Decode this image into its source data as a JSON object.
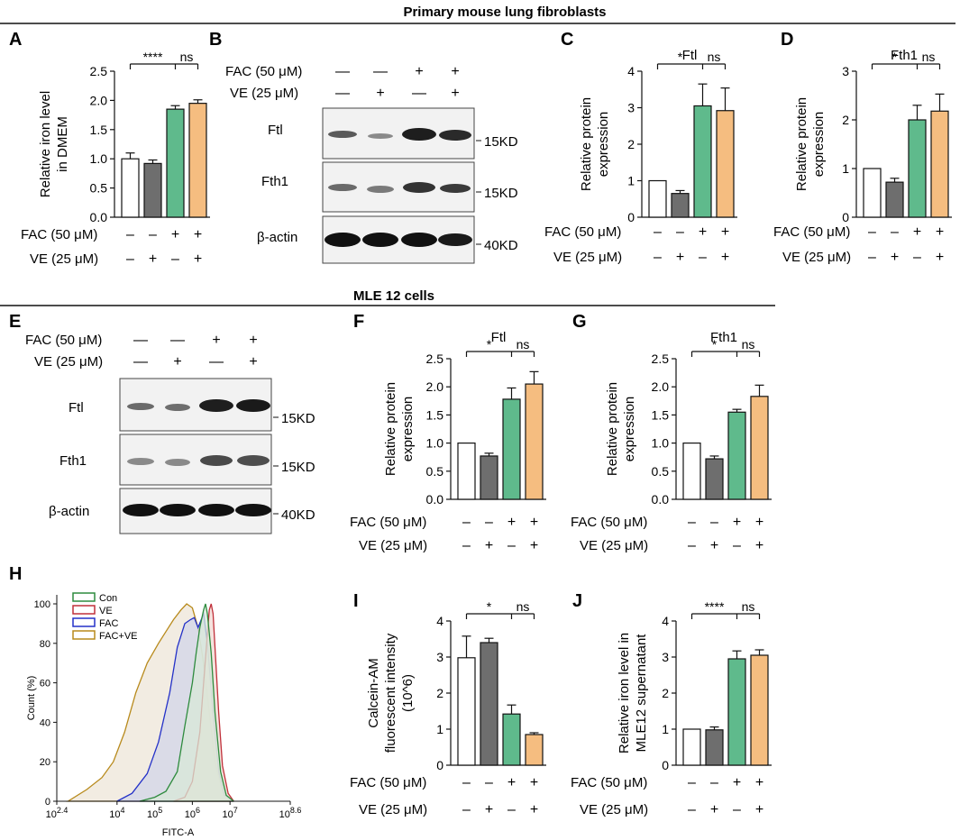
{
  "header_top": "Primary mouse lung fibroblasts",
  "header_mid": "MLE 12 cells",
  "panels": {
    "A": "A",
    "B": "B",
    "C": "C",
    "D": "D",
    "E": "E",
    "F": "F",
    "G": "G",
    "H": "H",
    "I": "I",
    "J": "J"
  },
  "treatment_labels": {
    "fac_bar": "FAC (50 μM)",
    "ve_bar": "VE (25 μM)",
    "fac_blot": "FAC (50 μM)",
    "ve_blot": "VE (25 μM)"
  },
  "fac_signs": [
    "–",
    "–",
    "+",
    "+"
  ],
  "ve_signs": [
    "–",
    "+",
    "–",
    "+"
  ],
  "blot_fac_signs": [
    "—",
    "—",
    "+",
    "+"
  ],
  "blot_ve_signs": [
    "—",
    "+",
    "—",
    "+"
  ],
  "bar_colors": [
    "#ffffff",
    "#6e6e6e",
    "#5fba8c",
    "#f5bd80"
  ],
  "blot_B": {
    "rows": [
      "Ftl",
      "Fth1",
      "β-actin"
    ],
    "sizes": [
      "15KD",
      "15KD",
      "40KD"
    ]
  },
  "blot_E": {
    "rows": [
      "Ftl",
      "Fth1",
      "β-actin"
    ],
    "sizes": [
      "15KD",
      "15KD",
      "40KD"
    ]
  },
  "chart_data": [
    {
      "panel": "A",
      "type": "bar",
      "title": "",
      "ylabel": "Relative iron level in DMEM",
      "ylabel_lines": [
        "Relative iron level",
        "in DMEM"
      ],
      "ylim": [
        0,
        2.5
      ],
      "yticks": [
        "0.0",
        "0.5",
        "1.0",
        "1.5",
        "2.0",
        "2.5"
      ],
      "values": [
        1.0,
        0.92,
        1.85,
        1.95
      ],
      "errors": [
        0.1,
        0.06,
        0.06,
        0.06
      ],
      "sig": [
        "****",
        "ns"
      ]
    },
    {
      "panel": "C",
      "type": "bar",
      "title": "Ftl",
      "ylabel": "Relative protein expression",
      "ylabel_lines": [
        "Relative  protein",
        "expression"
      ],
      "ylim": [
        0,
        4
      ],
      "yticks": [
        "0",
        "1",
        "2",
        "3",
        "4"
      ],
      "values": [
        1.0,
        0.65,
        3.05,
        2.92
      ],
      "errors": [
        0,
        0.08,
        0.6,
        0.62
      ],
      "sig": [
        "*",
        "ns"
      ]
    },
    {
      "panel": "D",
      "type": "bar",
      "title": "Fth1",
      "ylabel": "Relative protein expression",
      "ylabel_lines": [
        "Relative  protein",
        "expression"
      ],
      "ylim": [
        0,
        3
      ],
      "yticks": [
        "0",
        "1",
        "2",
        "3"
      ],
      "values": [
        1.0,
        0.72,
        2.0,
        2.18
      ],
      "errors": [
        0,
        0.08,
        0.3,
        0.35
      ],
      "sig": [
        "*",
        "ns"
      ]
    },
    {
      "panel": "F",
      "type": "bar",
      "title": "Ftl",
      "ylabel": "Relative protein expression",
      "ylabel_lines": [
        "Relative protein",
        "expression"
      ],
      "ylim": [
        0,
        2.5
      ],
      "yticks": [
        "0.0",
        "0.5",
        "1.0",
        "1.5",
        "2.0",
        "2.5"
      ],
      "values": [
        1.0,
        0.77,
        1.78,
        2.05
      ],
      "errors": [
        0,
        0.05,
        0.2,
        0.22
      ],
      "sig": [
        "*",
        "ns"
      ]
    },
    {
      "panel": "G",
      "type": "bar",
      "title": "Fth1",
      "ylabel": "Relative protein expression",
      "ylabel_lines": [
        "Relative protein",
        "expression"
      ],
      "ylim": [
        0,
        2.5
      ],
      "yticks": [
        "0.0",
        "0.5",
        "1.0",
        "1.5",
        "2.0",
        "2.5"
      ],
      "values": [
        1.0,
        0.72,
        1.55,
        1.83
      ],
      "errors": [
        0,
        0.05,
        0.05,
        0.2
      ],
      "sig": [
        "*",
        "ns"
      ]
    },
    {
      "panel": "I",
      "type": "bar",
      "title": "",
      "ylabel": "Calcein-AM fluorescent intensity (10^6)",
      "ylabel_lines": [
        "Calcein-AM",
        "fluorescent intensity",
        "(10^6)"
      ],
      "ylim": [
        0,
        4
      ],
      "yticks": [
        "0",
        "1",
        "2",
        "3",
        "4"
      ],
      "values": [
        2.98,
        3.4,
        1.42,
        0.85
      ],
      "errors": [
        0.6,
        0.12,
        0.25,
        0.05
      ],
      "sig": [
        "*",
        "ns"
      ]
    },
    {
      "panel": "J",
      "type": "bar",
      "title": "",
      "ylabel": "Relative iron level in MLE12 supernatant",
      "ylabel_lines": [
        "Relative iron level in",
        "MLE12 supernatant"
      ],
      "ylim": [
        0,
        4
      ],
      "yticks": [
        "0",
        "1",
        "2",
        "3",
        "4"
      ],
      "values": [
        1.0,
        0.98,
        2.95,
        3.05
      ],
      "errors": [
        0,
        0.08,
        0.22,
        0.15
      ],
      "sig": [
        "****",
        "ns"
      ]
    },
    {
      "panel": "H",
      "type": "line",
      "title": "",
      "xlabel": "FITC-A",
      "ylabel": "Count (%)",
      "xlim_log10": [
        2.4,
        8.6
      ],
      "ylim": [
        0,
        100
      ],
      "xticks": [
        {
          "base": "10",
          "exp": "2.4"
        },
        {
          "base": "10",
          "exp": "4"
        },
        {
          "base": "10",
          "exp": "5"
        },
        {
          "base": "10",
          "exp": "6"
        },
        {
          "base": "10",
          "exp": "7"
        },
        {
          "base": "10",
          "exp": "8.6"
        }
      ],
      "yticks": [
        "0",
        "20",
        "40",
        "60",
        "80",
        "100"
      ],
      "legend_position": "top-left",
      "series": [
        {
          "name": "Con",
          "color": "#2e8b3e",
          "fill": "#d8e8d8",
          "x": [
            4.6,
            5.0,
            5.3,
            5.6,
            5.8,
            6.0,
            6.1,
            6.2,
            6.3,
            6.35,
            6.4,
            6.5,
            6.6,
            6.75,
            6.9,
            7.1
          ],
          "y": [
            0,
            2,
            5,
            15,
            38,
            60,
            75,
            88,
            97,
            100,
            95,
            75,
            45,
            15,
            3,
            0
          ]
        },
        {
          "name": "VE",
          "color": "#c0303a",
          "fill": "#f1d9d3",
          "x": [
            5.5,
            5.8,
            6.0,
            6.2,
            6.3,
            6.4,
            6.45,
            6.5,
            6.55,
            6.6,
            6.7,
            6.8,
            6.95,
            7.1
          ],
          "y": [
            0,
            2,
            10,
            35,
            60,
            85,
            97,
            100,
            95,
            78,
            45,
            18,
            4,
            0
          ]
        },
        {
          "name": "FAC",
          "color": "#2431c8",
          "fill": "#d2d6e8",
          "x": [
            4.0,
            4.4,
            4.8,
            5.1,
            5.4,
            5.6,
            5.8,
            5.95,
            6.05,
            6.15,
            6.3,
            6.4,
            6.55,
            6.7,
            6.85,
            7.1
          ],
          "y": [
            0,
            4,
            14,
            30,
            55,
            78,
            90,
            92,
            93,
            88,
            95,
            80,
            45,
            15,
            3,
            0
          ]
        },
        {
          "name": "FAC+VE",
          "color": "#b88a1c",
          "fill": "#eee6d8",
          "x": [
            2.7,
            3.2,
            3.6,
            3.9,
            4.2,
            4.5,
            4.8,
            5.1,
            5.3,
            5.5,
            5.7,
            5.85,
            6.0,
            6.15,
            6.3,
            6.45,
            6.6,
            6.8,
            7.0
          ],
          "y": [
            0,
            6,
            12,
            20,
            35,
            55,
            70,
            80,
            86,
            92,
            97,
            100,
            98,
            88,
            70,
            45,
            20,
            5,
            0
          ]
        }
      ]
    }
  ]
}
